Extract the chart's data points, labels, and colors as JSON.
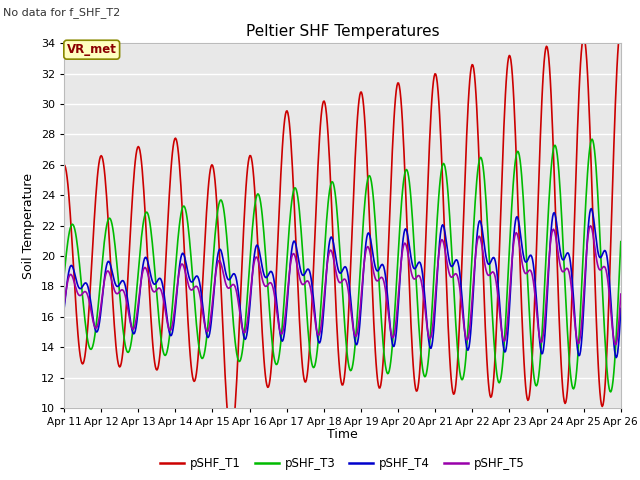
{
  "title": "Peltier SHF Temperatures",
  "subtitle": "No data for f_SHF_T2",
  "ylabel": "Soil Temperature",
  "xlabel": "Time",
  "annotation": "VR_met",
  "ylim": [
    10,
    34
  ],
  "yticks": [
    10,
    12,
    14,
    16,
    18,
    20,
    22,
    24,
    26,
    28,
    30,
    32,
    34
  ],
  "x_labels": [
    "Apr 11",
    "Apr 12",
    "Apr 13",
    "Apr 14",
    "Apr 15",
    "Apr 16",
    "Apr 17",
    "Apr 18",
    "Apr 19",
    "Apr 20",
    "Apr 21",
    "Apr 22",
    "Apr 23",
    "Apr 24",
    "Apr 25",
    "Apr 26"
  ],
  "series": {
    "pSHF_T1": {
      "color": "#cc0000",
      "linewidth": 1.2
    },
    "pSHF_T3": {
      "color": "#00bb00",
      "linewidth": 1.2
    },
    "pSHF_T4": {
      "color": "#0000cc",
      "linewidth": 1.2
    },
    "pSHF_T5": {
      "color": "#9900aa",
      "linewidth": 1.2
    }
  },
  "plot_bg": "#e8e8e8",
  "fig_bg": "#ffffff",
  "grid_color": "#ffffff",
  "n_points": 720
}
